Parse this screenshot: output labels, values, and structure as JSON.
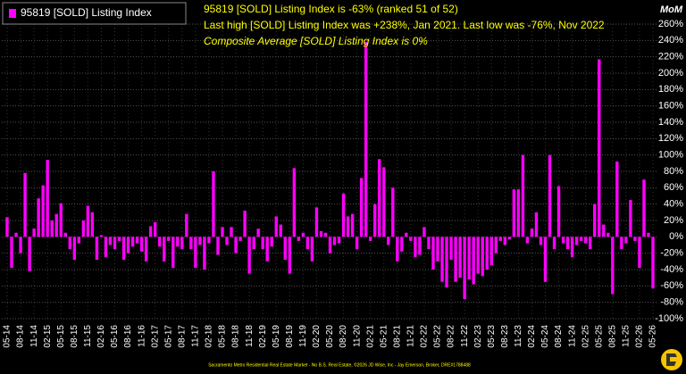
{
  "chart_data": {
    "type": "bar",
    "legend": "95819 [SOLD] Listing Index",
    "annotations": [
      "95819 [SOLD] Listing Index is -63% (ranked 51 of 52)",
      "Last high [SOLD] Listing Index was +238%, Jan 2021. Last low was -76%, Nov 2022",
      "Composite Average [SOLD] Listing Index is 0%"
    ],
    "y_axis_title": "MoM",
    "footer": "Sacramento Metro Residential Real Estate Market - No B.S. Real Estate, ©2026 JD Wise, Inc - Jay Emerson, Broker, DRE#1788488",
    "color": "#ff00ff",
    "grid": true,
    "categories": [
      "05-14",
      null,
      null,
      "08-14",
      null,
      null,
      "11-14",
      null,
      null,
      "02-15",
      null,
      null,
      "05-15",
      null,
      null,
      "08-15",
      null,
      null,
      "11-15",
      null,
      null,
      "02-16",
      null,
      null,
      "05-16",
      null,
      null,
      "08-16",
      null,
      null,
      "11-16",
      null,
      null,
      "02-17",
      null,
      null,
      "05-17",
      null,
      null,
      "08-17",
      null,
      null,
      "11-17",
      null,
      null,
      "02-18",
      null,
      null,
      "05-18",
      null,
      null,
      "08-18",
      null,
      null,
      "11-18",
      null,
      null,
      "02-19",
      null,
      null,
      "05-19",
      null,
      null,
      "08-19",
      null,
      null,
      "11-19",
      null,
      null,
      "02-20",
      null,
      null,
      "05-20",
      null,
      null,
      "08-20",
      null,
      null,
      "11-20",
      null,
      null,
      "02-21",
      null,
      null,
      "05-21",
      null,
      null,
      "08-21",
      null,
      null,
      "11-21",
      null,
      null,
      "02-22",
      null,
      null,
      "05-22",
      null,
      null,
      "08-22",
      null,
      null,
      "11-22",
      null,
      null,
      "02-23",
      null,
      null,
      "05-23",
      null,
      null,
      "08-23",
      null,
      null,
      "11-23",
      null,
      null,
      "02-24",
      null,
      null,
      "05-24",
      null,
      null,
      "08-24",
      null,
      null,
      "11-24",
      null,
      null,
      "02-25",
      null,
      null,
      "05-25",
      null,
      null,
      "08-25",
      null,
      null,
      "11-25",
      null,
      null,
      "02-26",
      null,
      null,
      "05-26"
    ],
    "values": [
      24,
      -38,
      5,
      -20,
      78,
      -42,
      10,
      47,
      63,
      94,
      20,
      28,
      41,
      5,
      -15,
      -28,
      -8,
      20,
      38,
      30,
      -28,
      2,
      -25,
      -10,
      -15,
      -5,
      -28,
      -20,
      -12,
      -8,
      -18,
      -30,
      13,
      18,
      -12,
      -30,
      -5,
      -38,
      -12,
      -15,
      28,
      -15,
      -38,
      -10,
      -40,
      -8,
      80,
      -22,
      12,
      -10,
      12,
      -20,
      -5,
      32,
      -45,
      -15,
      10,
      -15,
      -30,
      -12,
      25,
      15,
      -28,
      -45,
      84,
      -5,
      5,
      -15,
      -30,
      36,
      7,
      5,
      -20,
      -10,
      -8,
      53,
      25,
      28,
      -15,
      72,
      238,
      -5,
      40,
      95,
      85,
      -10,
      60,
      -30,
      -18,
      5,
      -5,
      -25,
      -22,
      12,
      -15,
      -40,
      -30,
      -55,
      -62,
      -28,
      -55,
      -50,
      -76,
      -52,
      -58,
      -45,
      -48,
      -40,
      -35,
      -20,
      -5,
      -10,
      -3,
      58,
      58,
      100,
      -8,
      10,
      30,
      -10,
      -55,
      100,
      -15,
      62,
      -8,
      -15,
      -25,
      -10,
      -5,
      -8,
      -15,
      40,
      217,
      15,
      5,
      -70,
      92,
      -15,
      -8,
      45,
      -5,
      -38,
      70,
      5,
      -63
    ],
    "ylim": [
      -100,
      260
    ],
    "yticks": [
      {
        "value": 260,
        "label": "260%"
      },
      {
        "value": 240,
        "label": "240%"
      },
      {
        "value": 220,
        "label": "220%"
      },
      {
        "value": 200,
        "label": "200%"
      },
      {
        "value": 180,
        "label": "180%"
      },
      {
        "value": 160,
        "label": "160%"
      },
      {
        "value": 140,
        "label": "140%"
      },
      {
        "value": 120,
        "label": "120%"
      },
      {
        "value": 100,
        "label": "100%"
      },
      {
        "value": 80,
        "label": "80%"
      },
      {
        "value": 60,
        "label": "60%"
      },
      {
        "value": 40,
        "label": "40%"
      },
      {
        "value": 20,
        "label": "20%"
      },
      {
        "value": 0,
        "label": "0%"
      },
      {
        "value": -20,
        "label": "-20%"
      },
      {
        "value": -40,
        "label": "-40%"
      },
      {
        "value": -60,
        "label": "-60%"
      },
      {
        "value": -80,
        "label": "-80%"
      },
      {
        "value": -100,
        "label": "-100%"
      }
    ]
  }
}
